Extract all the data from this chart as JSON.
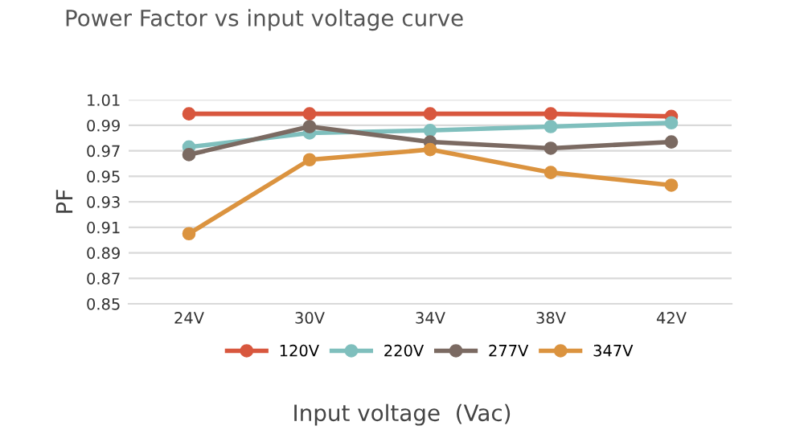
{
  "chart_data": {
    "type": "line",
    "title": "Power Factor vs input voltage curve",
    "xlabel": "Input voltage  (Vac)",
    "ylabel": "PF",
    "categories": [
      "24V",
      "30V",
      "34V",
      "38V",
      "42V"
    ],
    "series": [
      {
        "name": "120V",
        "color": "#d8573e",
        "values": [
          0.999,
          0.999,
          0.999,
          0.999,
          0.997
        ]
      },
      {
        "name": "220V",
        "color": "#7fbfbd",
        "values": [
          0.973,
          0.984,
          0.986,
          0.989,
          0.992
        ]
      },
      {
        "name": "277V",
        "color": "#7b6a62",
        "values": [
          0.967,
          0.989,
          0.977,
          0.972,
          0.977
        ]
      },
      {
        "name": "347V",
        "color": "#db933f",
        "values": [
          0.905,
          0.963,
          0.971,
          0.953,
          0.943
        ]
      }
    ],
    "ylim": [
      0.85,
      1.01
    ],
    "yticks": [
      {
        "value": 0.85,
        "label": "0.85"
      },
      {
        "value": 0.87,
        "label": "0.87"
      },
      {
        "value": 0.89,
        "label": "0.89"
      },
      {
        "value": 0.91,
        "label": "0.91"
      },
      {
        "value": 0.93,
        "label": "0.93"
      },
      {
        "value": 0.95,
        "label": "0.95"
      },
      {
        "value": 0.97,
        "label": "0.97"
      },
      {
        "value": 0.99,
        "label": "0.99"
      },
      {
        "value": 1.01,
        "label": "1.01"
      }
    ],
    "grid": "y",
    "legend": "bottom",
    "marker": "circle",
    "line_style": "solid"
  }
}
